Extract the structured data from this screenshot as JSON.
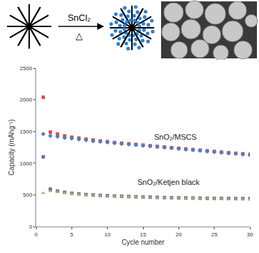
{
  "scheme": {
    "reagent": "SnCl₂",
    "condition": "△"
  },
  "chart_data": {
    "type": "scatter",
    "x_label": "Cycle number",
    "y_label": "Capacity (mAhg⁻¹)",
    "x": [
      1,
      2,
      3,
      4,
      5,
      6,
      7,
      8,
      9,
      10,
      11,
      12,
      13,
      14,
      15,
      16,
      17,
      18,
      19,
      20,
      21,
      22,
      23,
      24,
      25,
      26,
      27,
      28,
      29,
      30
    ],
    "series": [
      {
        "color": "#e04848",
        "marker": "square",
        "values": [
          2040,
          1490,
          1460,
          1430,
          1410,
          1395,
          1380,
          1365,
          1350,
          1340,
          1325,
          1315,
          1305,
          1295,
          1285,
          1275,
          1265,
          1255,
          1245,
          1235,
          1225,
          1215,
          1205,
          1195,
          1185,
          1175,
          1165,
          1155,
          1148,
          1140
        ]
      },
      {
        "color": "#4a7fc1",
        "marker": "diamond",
        "values": [
          1460,
          1430,
          1420,
          1400,
          1390,
          1375,
          1365,
          1350,
          1340,
          1330,
          1318,
          1308,
          1298,
          1288,
          1278,
          1268,
          1258,
          1248,
          1238,
          1228,
          1218,
          1208,
          1198,
          1188,
          1178,
          1168,
          1158,
          1150,
          1140,
          1130
        ]
      },
      {
        "color": "#8064a2",
        "marker": "square",
        "values": [
          1100,
          590,
          560,
          540,
          525,
          515,
          505,
          498,
          492,
          487,
          482,
          478,
          474,
          470,
          467,
          464,
          461,
          458,
          456,
          454,
          452,
          450,
          448,
          446,
          445,
          444,
          443,
          442,
          441,
          440
        ]
      },
      {
        "color": "#9bbb59",
        "marker": "triangle-up",
        "values": [
          530,
          560,
          545,
          530,
          518,
          508,
          500,
          493,
          487,
          482,
          478,
          474,
          470,
          466,
          463,
          460,
          457,
          455,
          453,
          451,
          449,
          447,
          445,
          443,
          441,
          439,
          437,
          435,
          433,
          431
        ]
      }
    ],
    "annotations": [
      "SnO₂/MSCS",
      "SnO₂/Ketjen black"
    ],
    "xlim": [
      0,
      30
    ],
    "xticks": [
      0,
      5,
      10,
      15,
      20,
      25,
      30
    ],
    "ylim": [
      0,
      2500
    ],
    "yticks": [
      0,
      500,
      1000,
      1500,
      2000,
      2500
    ],
    "grid": false
  }
}
